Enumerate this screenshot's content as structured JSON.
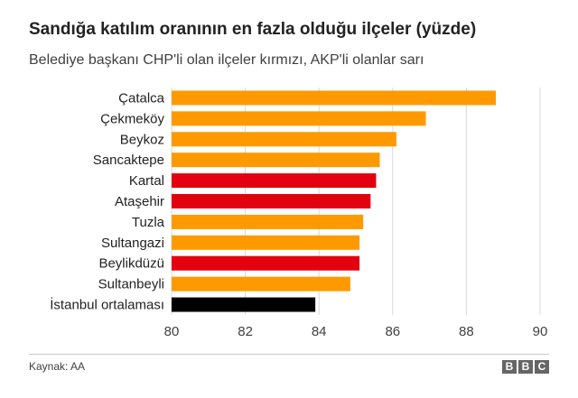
{
  "header": {
    "title": "Sandığa katılım oranının en fazla olduğu ilçeler (yüzde)",
    "subtitle": "Belediye başkanı CHP'li olan ilçeler kırmızı, AKP'li olanlar sarı"
  },
  "footer": {
    "source": "Kaynak: AA",
    "logo_letters": [
      "B",
      "B",
      "C"
    ]
  },
  "colors": {
    "akp": "#fe9a00",
    "chp": "#e3000f",
    "average": "#000000",
    "grid": "#d9d9d9",
    "axis_text": "#404040"
  },
  "chart_data": {
    "type": "bar",
    "orientation": "horizontal",
    "title": "Sandığa katılım oranının en fazla olduğu ilçeler (yüzde)",
    "subtitle": "Belediye başkanı CHP'li olan ilçeler kırmızı, AKP'li olanlar sarı",
    "categories": [
      "Çatalca",
      "Çekmeköy",
      "Beykoz",
      "Sancaktepe",
      "Kartal",
      "Ataşehir",
      "Tuzla",
      "Sultangazi",
      "Beylikdüzü",
      "Sultanbeyli",
      "İstanbul ortalaması"
    ],
    "values": [
      88.8,
      86.9,
      86.1,
      85.65,
      85.55,
      85.4,
      85.2,
      85.1,
      85.1,
      84.85,
      83.9
    ],
    "bar_colors": [
      "akp",
      "akp",
      "akp",
      "akp",
      "chp",
      "chp",
      "akp",
      "akp",
      "chp",
      "akp",
      "average"
    ],
    "xlim": [
      80,
      90
    ],
    "xticks": [
      80,
      82,
      84,
      86,
      88,
      90
    ],
    "grid": true,
    "source": "Kaynak: AA"
  }
}
